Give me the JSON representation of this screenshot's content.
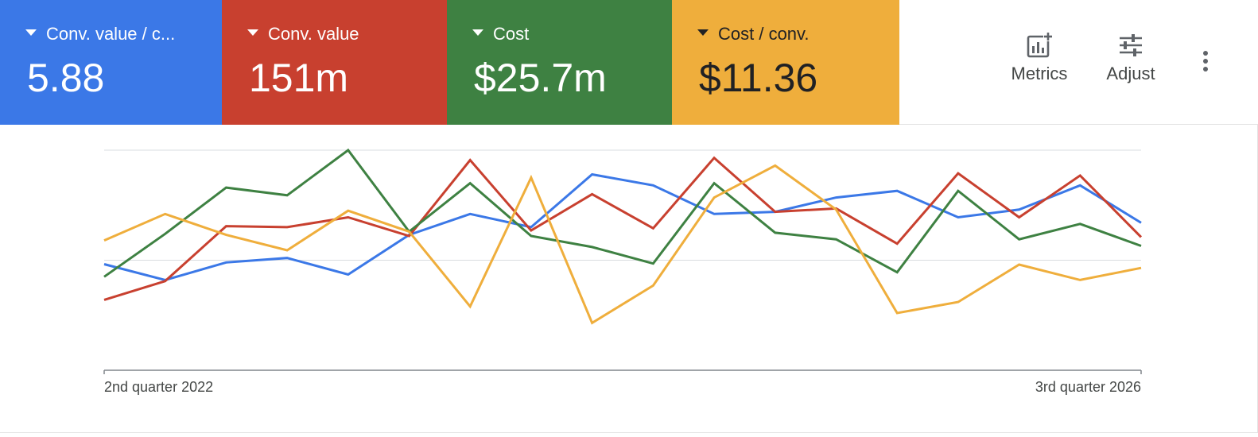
{
  "scorecards": [
    {
      "label": "Conv. value / c...",
      "value": "5.88",
      "color": "#3b78e7",
      "text_color": "#ffffff"
    },
    {
      "label": "Conv. value",
      "value": "151m",
      "color": "#c8402f",
      "text_color": "#ffffff"
    },
    {
      "label": "Cost",
      "value": "$25.7m",
      "color": "#3e8142",
      "text_color": "#ffffff"
    },
    {
      "label": "Cost / conv.",
      "value": "$11.36",
      "color": "#efae3c",
      "text_color": "#202124"
    }
  ],
  "toolbar": {
    "metrics_label": "Metrics",
    "metrics_icon": "add-chart-icon",
    "adjust_label": "Adjust",
    "adjust_icon": "tune-icon",
    "more_icon": "more-vert-icon"
  },
  "chart_data": {
    "type": "line",
    "x": [
      "2nd quarter 2022",
      "",
      "",
      "",
      "",
      "",
      "",
      "",
      "",
      "",
      "",
      "",
      "",
      "",
      "",
      "",
      "",
      "3rd quarter 2026"
    ],
    "x_tick_labels": [
      "2nd quarter 2022",
      "3rd quarter 2026"
    ],
    "ylim": [
      0,
      100
    ],
    "grid": true,
    "gridlines": [
      50,
      100
    ],
    "series": [
      {
        "color": "#3b78e7",
        "values": [
          48.2,
          41.0,
          49.0,
          51.0,
          43.5,
          61.5,
          71.0,
          65.0,
          89.0,
          84.0,
          71.0,
          72.0,
          78.5,
          81.5,
          69.5,
          73.0,
          84.0,
          67.0
        ]
      },
      {
        "color": "#c8402f",
        "values": [
          32.0,
          40.5,
          65.5,
          65.0,
          69.5,
          61.0,
          95.5,
          63.5,
          80.0,
          64.5,
          96.5,
          72.0,
          73.5,
          57.5,
          89.5,
          69.5,
          88.5,
          60.5
        ]
      },
      {
        "color": "#3e8142",
        "values": [
          42.5,
          62.0,
          83.0,
          79.5,
          100.0,
          63.0,
          85.0,
          61.0,
          56.0,
          48.5,
          85.0,
          62.5,
          59.5,
          44.5,
          81.5,
          59.5,
          66.5,
          56.5
        ]
      },
      {
        "color": "#efae3c",
        "values": [
          59.0,
          71.0,
          61.5,
          54.5,
          72.5,
          63.0,
          29.0,
          87.5,
          21.5,
          38.5,
          78.5,
          93.0,
          73.0,
          26.0,
          31.0,
          48.0,
          41.0,
          46.5
        ]
      }
    ]
  }
}
